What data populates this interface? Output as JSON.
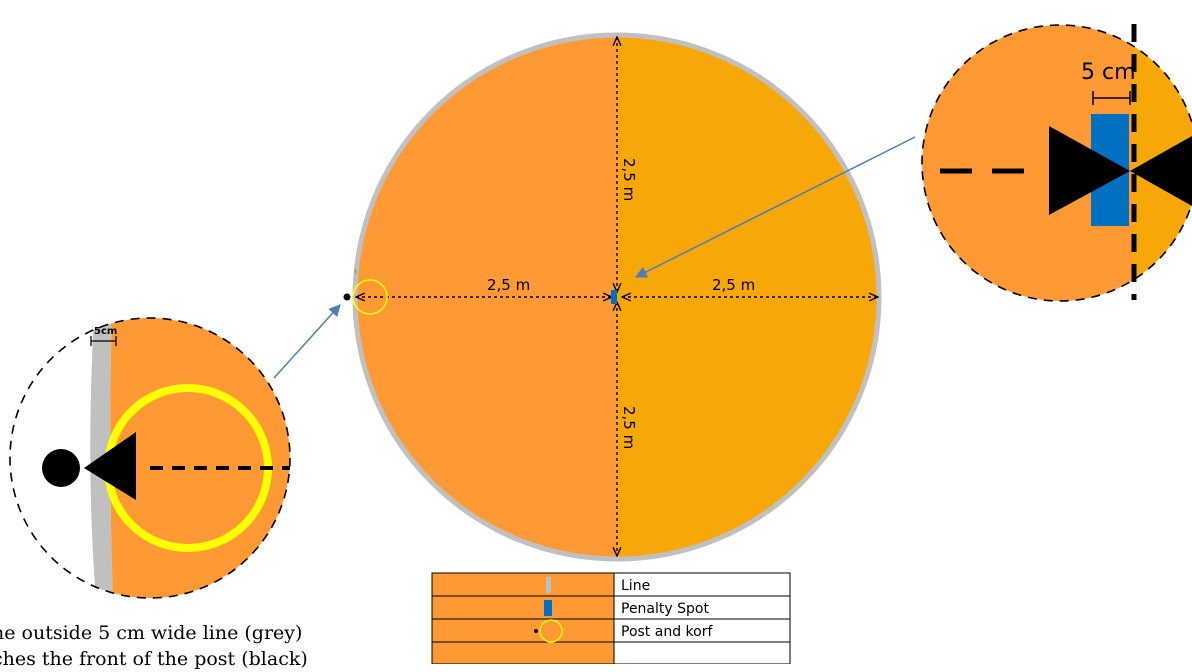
{
  "main_circle": {
    "horizontal_left_label": "2,5 m",
    "horizontal_right_label": "2,5 m",
    "vertical_top_label": "2,5 m",
    "vertical_bottom_label": "2,5 m"
  },
  "detail_post": {
    "width_label": "5cm"
  },
  "detail_spot": {
    "width_label": "5 cm"
  },
  "legend": {
    "rows": [
      {
        "label": "Line"
      },
      {
        "label": "Penalty Spot"
      },
      {
        "label": "Post and korf"
      }
    ]
  },
  "caption": {
    "line1": "he outside 5 cm wide line (grey)",
    "line2": "ches the front of the post (black)"
  },
  "colors": {
    "orange": "#ff9933",
    "gold": "#f7a808",
    "grey_line": "#c0c0c0",
    "penalty_blue": "#0070c0",
    "korf_yellow": "#ffff00",
    "arrow_blue": "#4a7ebb"
  }
}
